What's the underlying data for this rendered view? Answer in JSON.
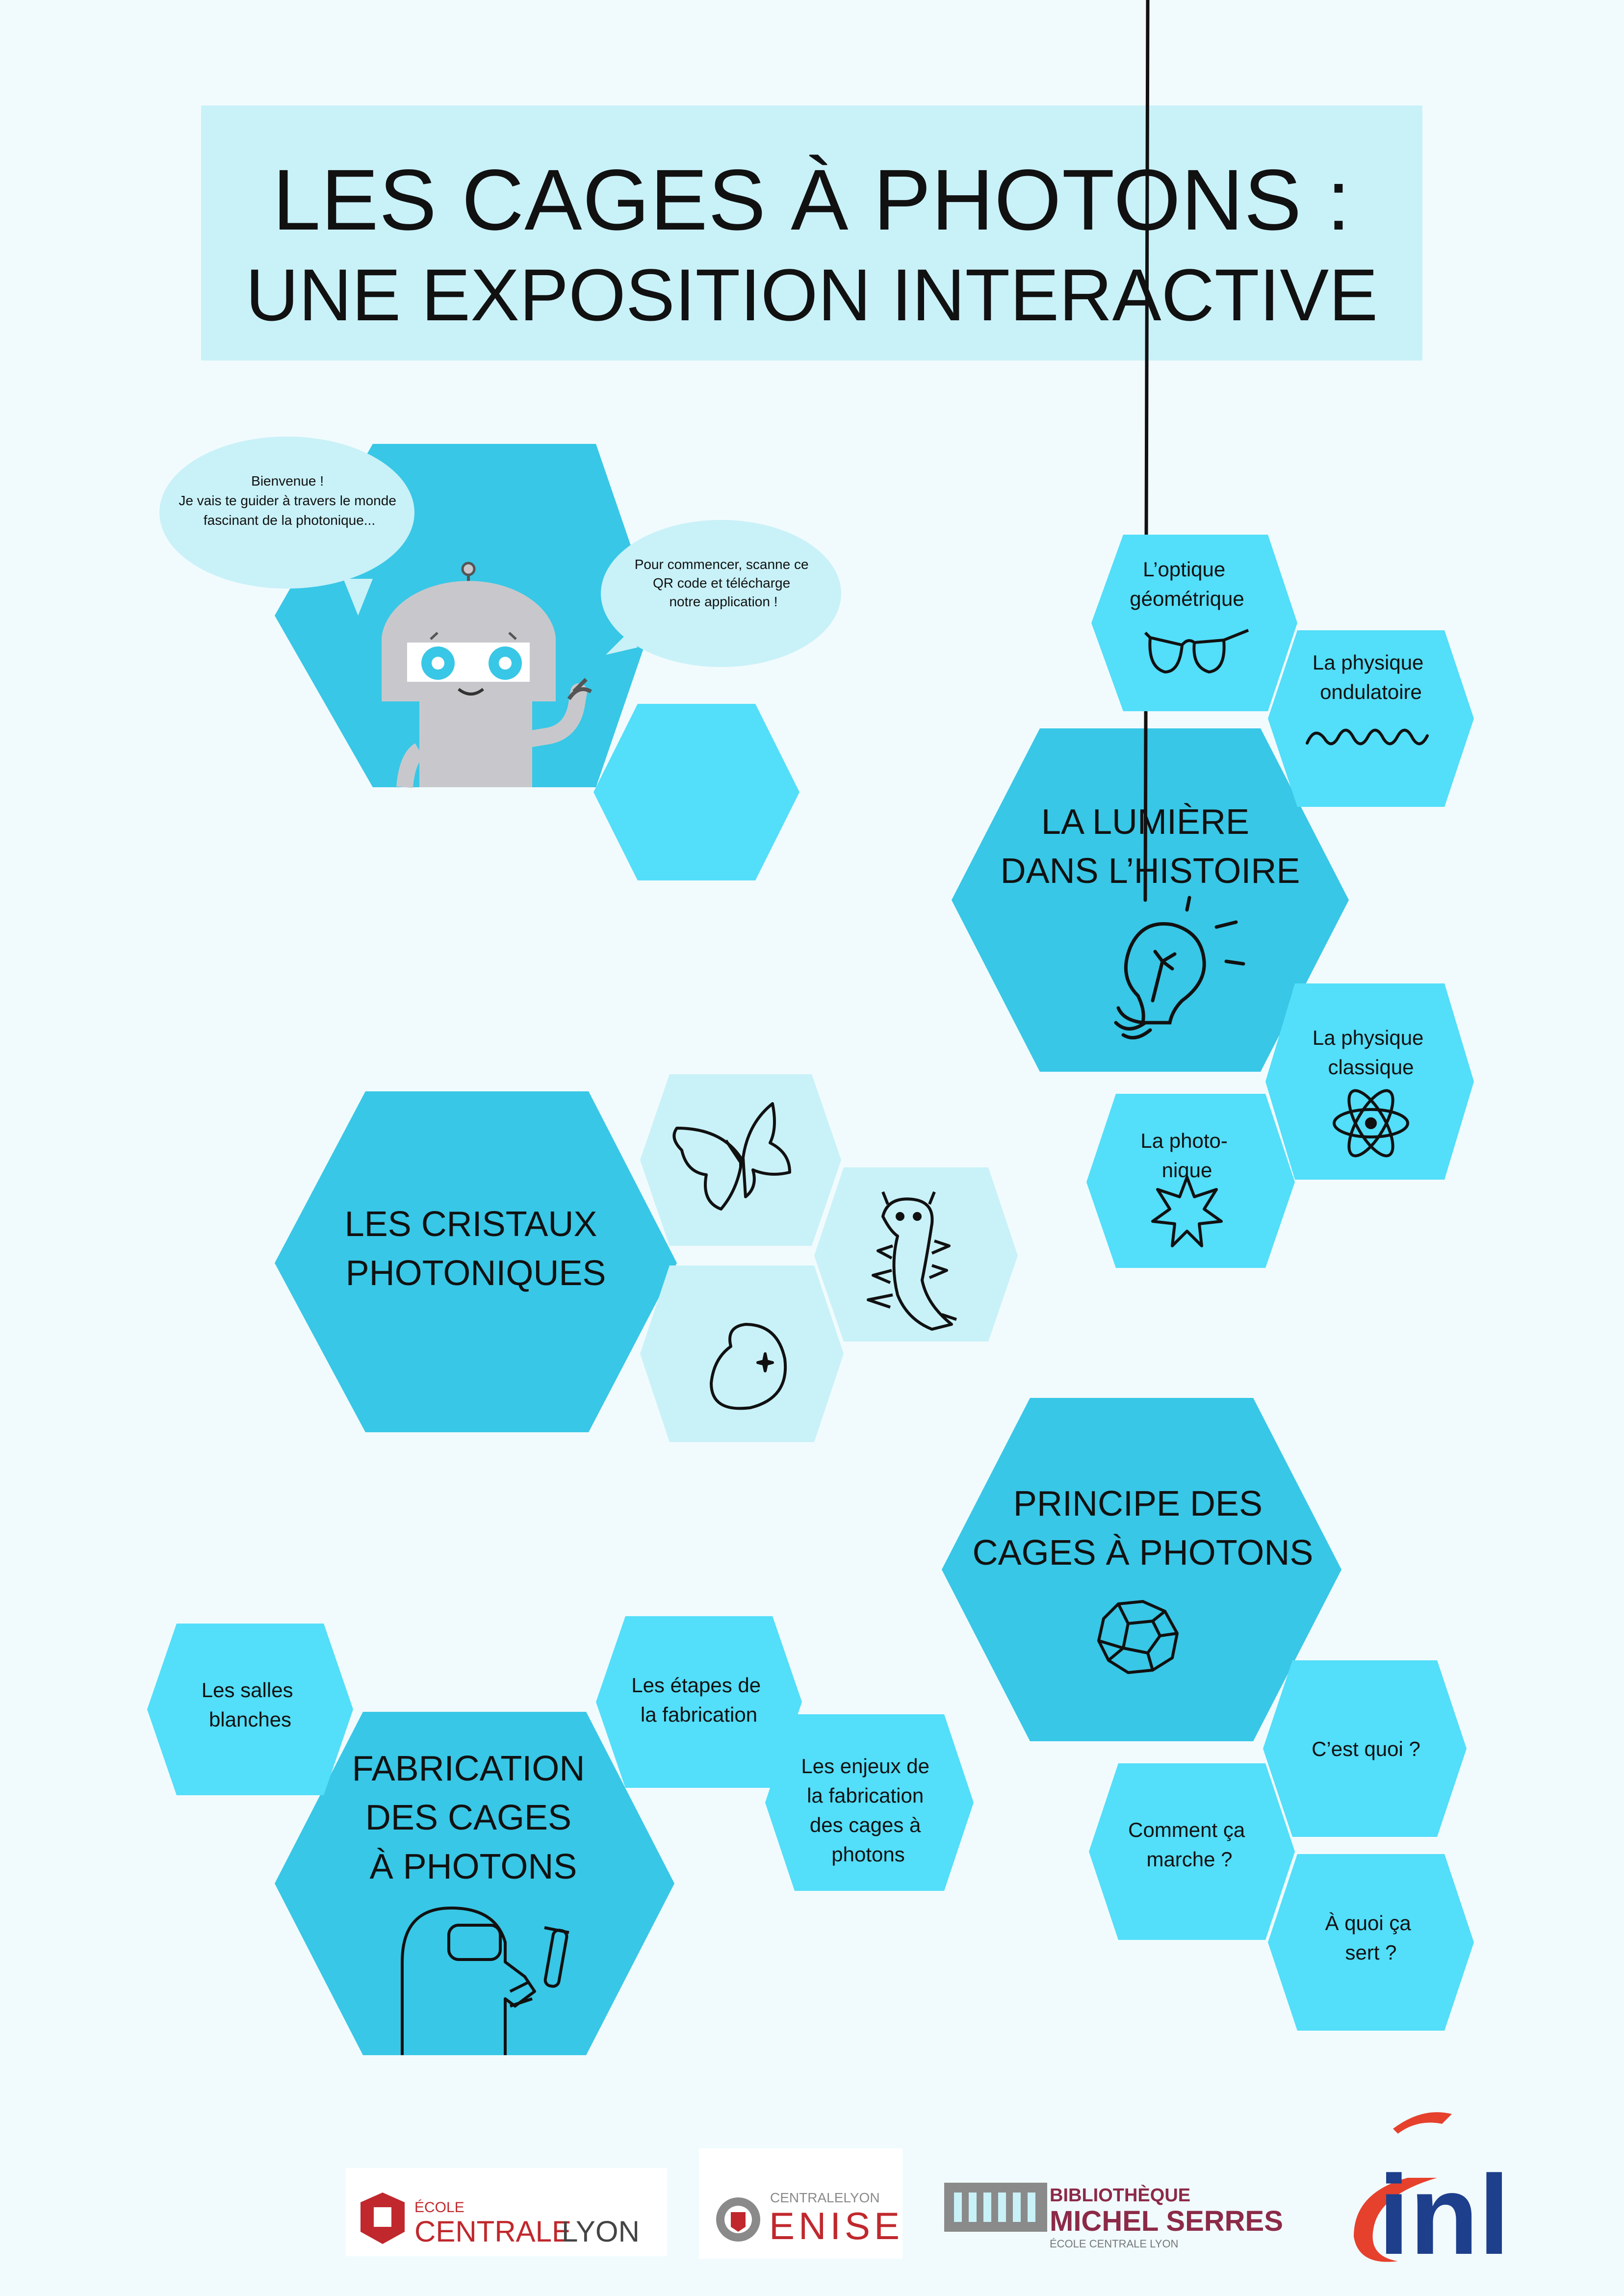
{
  "title": {
    "line1": "LES CAGES À PHOTONS :",
    "line2": "UNE EXPOSITION INTERACTIVE"
  },
  "robot": {
    "bubble_left": [
      "Bienvenue !",
      "Je vais te guider à travers le monde",
      "fascinant de la photonique..."
    ],
    "bubble_right": [
      "Pour commencer, scanne ce",
      "QR code et télécharge",
      "notre application !"
    ]
  },
  "sections": {
    "histoire": {
      "title": [
        "LA LUMIÈRE",
        "DANS L’HISTOIRE"
      ],
      "subs": [
        {
          "lines": [
            "L’optique",
            "géométrique"
          ],
          "icon": "glasses-icon"
        },
        {
          "lines": [
            "La physique",
            "ondulatoire"
          ],
          "icon": "wave-icon"
        },
        {
          "lines": [
            "La physique",
            "classique"
          ],
          "icon": "atom-icon"
        },
        {
          "lines": [
            "La photo-",
            "nique"
          ],
          "icon": "star-burst-icon"
        }
      ],
      "icon": "light-bulb-icon"
    },
    "cristaux": {
      "title": [
        "LES CRISTAUX",
        "PHOTONIQUES"
      ],
      "icons": [
        "butterfly-icon",
        "caterpillar-icon",
        "opal-stone-icon"
      ]
    },
    "principe": {
      "title": [
        "PRINCIPE DES",
        "CAGES À PHOTONS"
      ],
      "icon": "photon-cage-icon",
      "subs": [
        {
          "lines": [
            "C’est quoi ?"
          ]
        },
        {
          "lines": [
            "Comment ça",
            "marche ?"
          ]
        },
        {
          "lines": [
            "À quoi ça",
            "sert ?"
          ]
        }
      ]
    },
    "fabrication": {
      "title": [
        "FABRICATION",
        "DES CAGES",
        "À PHOTONS"
      ],
      "icon": "cleanroom-worker-icon",
      "subs": [
        {
          "lines": [
            "Les salles",
            "blanches"
          ]
        },
        {
          "lines": [
            "Les étapes de",
            "la fabrication"
          ]
        },
        {
          "lines": [
            "Les enjeux de",
            "la fabrication",
            "des cages à",
            "photons"
          ]
        }
      ]
    }
  },
  "logos": {
    "centrale": {
      "small": "ÉCOLE",
      "big1": "CENTRALE",
      "big2": "LYON"
    },
    "enise": {
      "small": "CENTRALELYON",
      "big": "ENISE"
    },
    "bibliotheque": {
      "line1": "BIBLIOTHÈQUE",
      "line2": "MICHEL SERRES",
      "line3": "ÉCOLE CENTRALE LYON"
    },
    "inl": {
      "text": "inl"
    }
  },
  "colors": {
    "background": "#f1fbfd",
    "title_box": "#c9f1f8",
    "hex_main": "#38c7e6",
    "hex_sub": "#53def9",
    "hex_light": "#c9f1f8",
    "bubble": "#c9f1f8",
    "robot_body": "#c8c8cc",
    "robot_eye": "#38c7e6",
    "logo_red": "#c0282d",
    "logo_maroon": "#8c2a48",
    "inl_blue": "#1d3f8c",
    "inl_red": "#e5412d"
  }
}
